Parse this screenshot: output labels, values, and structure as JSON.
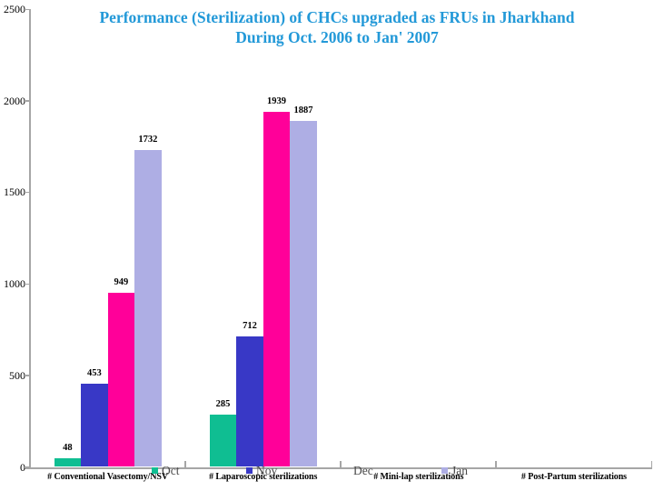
{
  "title": {
    "line1": "Performance (Sterilization) of CHCs upgraded as FRUs in Jharkhand",
    "line2": "During Oct. 2006 to Jan' 2007",
    "color": "#2399d8"
  },
  "chart_data": {
    "type": "bar",
    "title": "Performance (Sterilization) of CHCs upgraded as FRUs in Jharkhand During Oct. 2006 to Jan' 2007",
    "categories": [
      "#  Conventional Vasectomy/NSV",
      "# Laparoscopic sterilizations",
      "# Mini-lap sterilizations",
      "# Post-Partum sterilizations"
    ],
    "series": [
      {
        "name": "Oct",
        "color": "#0fbe92",
        "values": [
          48,
          285,
          null,
          null
        ]
      },
      {
        "name": "Nov",
        "color": "#3838c6",
        "values": [
          453,
          712,
          null,
          null
        ]
      },
      {
        "name": "Dec",
        "color": "#ff0099",
        "values": [
          949,
          1939,
          null,
          null
        ]
      },
      {
        "name": "Jan",
        "color": "#aeaee4",
        "values": [
          1732,
          1887,
          null,
          null
        ]
      }
    ],
    "xlabel": "",
    "ylabel": "",
    "ylim": [
      0,
      2500
    ],
    "yticks": [
      0,
      500,
      1000,
      1500,
      2000,
      2500
    ],
    "grid": false,
    "legend_position": "bottom, inline over category axis"
  },
  "legend": {
    "items": [
      {
        "label": "Oct",
        "swatch": "#0fbe92"
      },
      {
        "label": "Nov",
        "swatch": "#3838c6"
      },
      {
        "label": "Dec",
        "swatch": "none"
      },
      {
        "label": "Jan",
        "swatch": "#aeaee4"
      }
    ]
  },
  "axis_color": "#a6a6a6"
}
